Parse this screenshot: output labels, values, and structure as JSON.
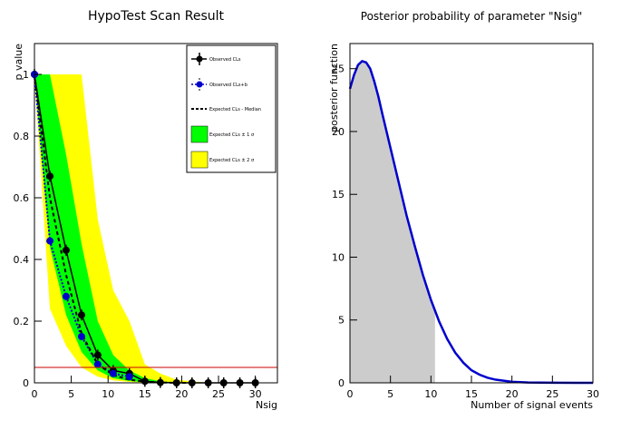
{
  "chart_data": [
    {
      "type": "line",
      "title": "HypoTest Scan Result",
      "xlabel": "Nsig",
      "ylabel": "p value",
      "xlim": [
        0,
        33
      ],
      "ylim": [
        0,
        1.1
      ],
      "xticks": [
        0,
        5,
        10,
        15,
        20,
        25,
        30
      ],
      "yticks": [
        0,
        0.2,
        0.4,
        0.6,
        0.8,
        1
      ],
      "grid": false,
      "legend_position": "top-right",
      "threshold": {
        "y": 0.05,
        "color": "#cc0000"
      },
      "legend": [
        {
          "label": "Observed CLs",
          "kind": "black-marker"
        },
        {
          "label": "Observed CLs+b",
          "kind": "blue-marker"
        },
        {
          "label": "Expected CLs - Median",
          "kind": "dashed"
        },
        {
          "label": "Expected CLs ± 1 σ",
          "kind": "green-box"
        },
        {
          "label": "Expected CLs ± 2 σ",
          "kind": "yellow-box"
        }
      ],
      "series": [
        {
          "name": "Observed CLs",
          "color": "#000000",
          "x": [
            0,
            2.1,
            4.3,
            6.4,
            8.6,
            10.7,
            12.9,
            15,
            17.1,
            19.3,
            21.4,
            23.6,
            25.7,
            27.9,
            30
          ],
          "y": [
            1.0,
            0.67,
            0.43,
            0.22,
            0.09,
            0.04,
            0.03,
            0.005,
            0.001,
            0,
            0,
            0,
            0,
            0,
            0
          ]
        },
        {
          "name": "Observed CLs+b",
          "color": "#0000cc",
          "x": [
            0,
            2.1,
            4.3,
            6.4,
            8.6,
            10.7,
            12.9
          ],
          "y": [
            1.0,
            0.46,
            0.28,
            0.15,
            0.06,
            0.03,
            0.02
          ]
        },
        {
          "name": "Expected CLs - Median",
          "color": "#000000",
          "x": [
            0,
            2.1,
            4.3,
            6.4,
            8.6,
            10.7,
            12.9,
            15,
            17.1,
            19.3,
            21.4
          ],
          "y": [
            1.0,
            0.6,
            0.35,
            0.16,
            0.06,
            0.025,
            0.01,
            0.004,
            0.001,
            0,
            0
          ]
        }
      ],
      "bands": {
        "x": [
          0,
          2.1,
          4.3,
          6.4,
          8.6,
          10.7,
          12.9,
          15,
          17.1,
          19.3,
          21.4,
          23.6,
          25.7,
          27.9,
          30
        ],
        "sigma2_low": [
          1.0,
          0.24,
          0.12,
          0.05,
          0.02,
          0.008,
          0.003,
          0.001,
          0,
          0,
          0,
          0,
          0,
          0,
          0
        ],
        "sigma2_high": [
          1.0,
          1.0,
          1.0,
          1.0,
          0.53,
          0.3,
          0.2,
          0.06,
          0.03,
          0.01,
          0.005,
          0,
          0,
          0,
          0
        ],
        "sigma1_low": [
          1.0,
          0.44,
          0.22,
          0.1,
          0.04,
          0.015,
          0.006,
          0.002,
          0,
          0,
          0,
          0,
          0,
          0,
          0
        ],
        "sigma1_high": [
          1.0,
          1.0,
          0.74,
          0.45,
          0.2,
          0.09,
          0.04,
          0.015,
          0.005,
          0.002,
          0,
          0,
          0,
          0,
          0
        ]
      }
    },
    {
      "type": "area",
      "title": "Posterior probability of parameter \"Nsig\"",
      "xlabel": "Number of signal events",
      "ylabel": "posterior function",
      "xlim": [
        0,
        30
      ],
      "ylim": [
        0,
        27
      ],
      "xticks": [
        0,
        5,
        10,
        15,
        20,
        25,
        30
      ],
      "yticks": [
        0,
        5,
        10,
        15,
        20,
        25
      ],
      "grid": false,
      "shaded_interval": [
        0,
        10.5
      ],
      "fill_color": "#cccccc",
      "line_color": "#0000cc",
      "series": [
        {
          "x": [
            0,
            0.5,
            1,
            1.5,
            2,
            2.5,
            3,
            3.5,
            4,
            5,
            6,
            7,
            8,
            9,
            10,
            11,
            12,
            13,
            14,
            15,
            16,
            17,
            18,
            20,
            22,
            25,
            30
          ],
          "y": [
            23.4,
            24.5,
            25.3,
            25.6,
            25.5,
            25.0,
            24.0,
            22.8,
            21.4,
            18.7,
            16.0,
            13.3,
            10.9,
            8.6,
            6.6,
            4.9,
            3.5,
            2.4,
            1.6,
            1.0,
            0.65,
            0.4,
            0.25,
            0.08,
            0.03,
            0.01,
            0.0
          ]
        }
      ]
    }
  ]
}
